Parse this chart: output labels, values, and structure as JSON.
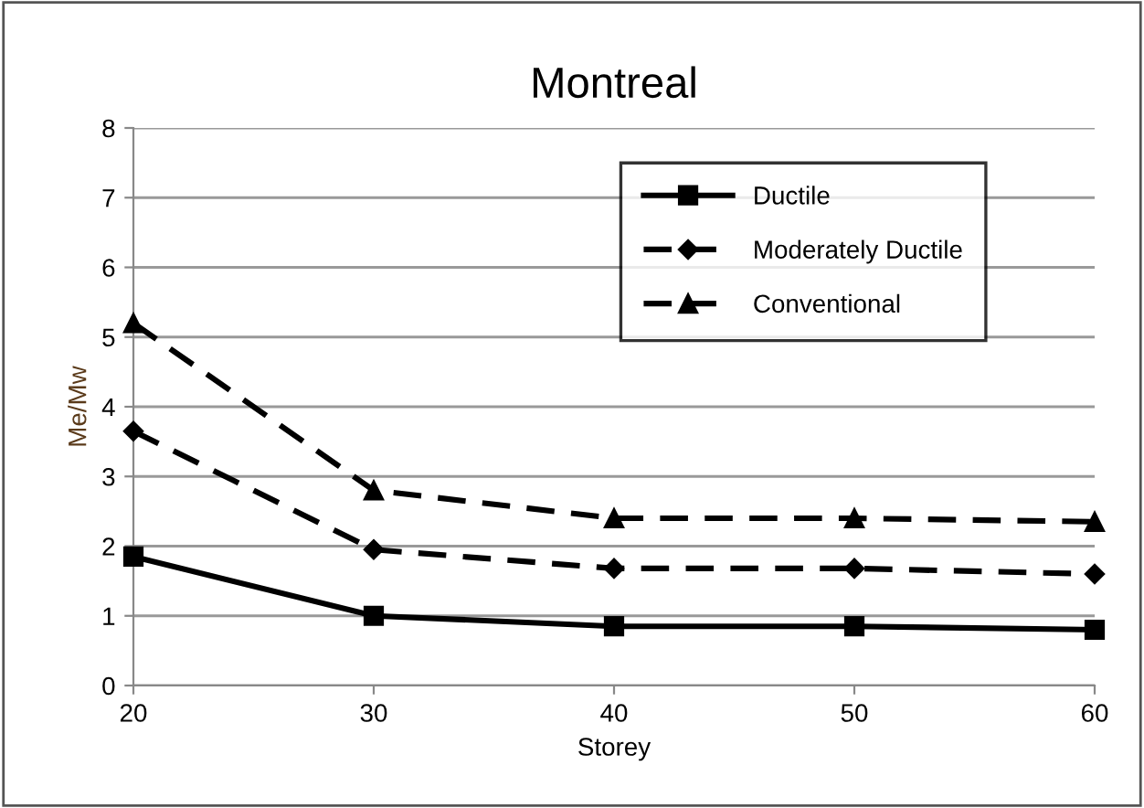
{
  "chart_data": {
    "type": "line",
    "title": "Montreal",
    "xlabel": "Storey",
    "ylabel": "Me/Mw",
    "x": [
      20,
      30,
      40,
      50,
      60
    ],
    "xlim": [
      20,
      60
    ],
    "xticks": [
      20,
      30,
      40,
      50,
      60
    ],
    "ylim": [
      0,
      8
    ],
    "yticks": [
      0,
      1,
      2,
      3,
      4,
      5,
      6,
      7,
      8
    ],
    "grid": "y",
    "legend": "top right",
    "series": [
      {
        "name": "Ductile",
        "color": "#000000",
        "marker": "square",
        "line_style": "solid",
        "values": [
          1.85,
          1.0,
          0.85,
          0.85,
          0.8
        ]
      },
      {
        "name": "Moderately Ductile",
        "color": "#000000",
        "marker": "diamond",
        "line_style": "dashed",
        "values": [
          3.65,
          1.95,
          1.68,
          1.68,
          1.6
        ]
      },
      {
        "name": "Conventional",
        "color": "#000000",
        "marker": "triangle",
        "line_style": "dashed",
        "values": [
          5.2,
          2.8,
          2.4,
          2.4,
          2.35
        ]
      }
    ]
  }
}
